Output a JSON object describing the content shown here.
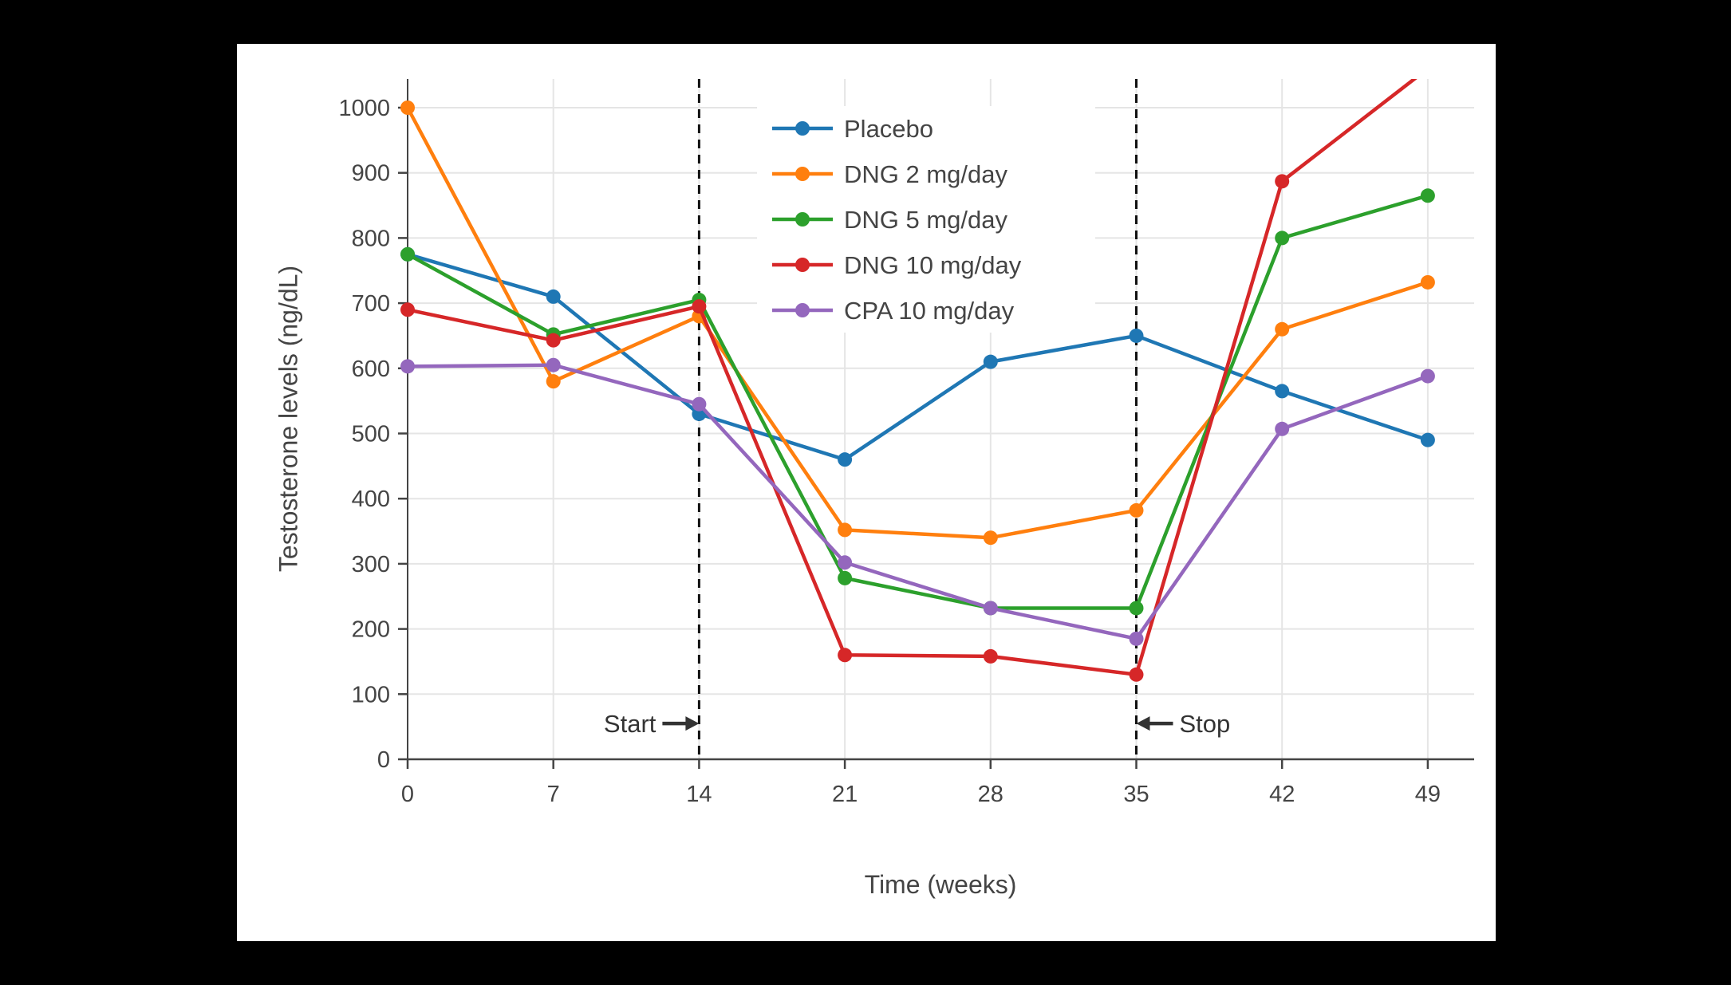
{
  "window": {
    "background_color": "#000000"
  },
  "panel": {
    "background_color": "#ffffff"
  },
  "chart_data": {
    "type": "line",
    "title": "",
    "xlabel": "Time (weeks)",
    "ylabel": "Testosterone levels (ng/dL)",
    "x": [
      0,
      7,
      14,
      21,
      28,
      35,
      42,
      49
    ],
    "x_tick_labels": [
      "0",
      "7",
      "14",
      "21",
      "28",
      "35",
      "42",
      "49"
    ],
    "y_tick_values": [
      0,
      100,
      200,
      300,
      400,
      500,
      600,
      700,
      800,
      900,
      1000
    ],
    "ylim": [
      0,
      1045
    ],
    "grid": true,
    "legend_position": "inside top-center",
    "series": [
      {
        "name": "Placebo",
        "color": "#1f77b4",
        "values": [
          775,
          710,
          530,
          460,
          610,
          650,
          565,
          490
        ]
      },
      {
        "name": "DNG 2 mg/day",
        "color": "#ff7f0e",
        "values": [
          1000,
          580,
          680,
          352,
          340,
          382,
          660,
          732
        ]
      },
      {
        "name": "DNG 5 mg/day",
        "color": "#2ca02c",
        "values": [
          775,
          652,
          705,
          278,
          232,
          232,
          800,
          865
        ]
      },
      {
        "name": "DNG 10 mg/day",
        "color": "#d62728",
        "values": [
          690,
          643,
          695,
          160,
          158,
          130,
          887,
          1060
        ]
      },
      {
        "name": "CPA 10 mg/day",
        "color": "#9467bd",
        "values": [
          603,
          605,
          545,
          302,
          232,
          185,
          507,
          588
        ]
      }
    ],
    "vlines": [
      14,
      35
    ],
    "annotations": [
      {
        "text": "Start",
        "x": 14,
        "y": 55,
        "arrow": "right"
      },
      {
        "text": "Stop",
        "x": 35,
        "y": 55,
        "arrow": "left"
      }
    ],
    "style": {
      "grid_color": "#e5e5e5",
      "axis_color": "#444444",
      "text_color": "#444444",
      "annotation_color": "#333333",
      "dashed_line_color": "#111111"
    }
  }
}
